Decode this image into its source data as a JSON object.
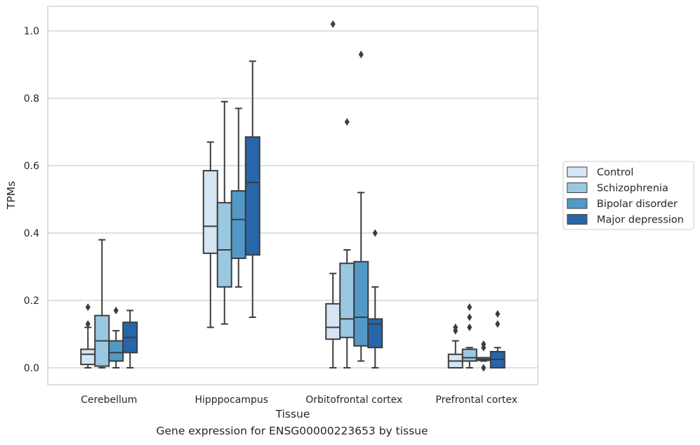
{
  "chart_data": {
    "type": "box",
    "xlabel": "Tissue",
    "ylabel": "TPMs",
    "ylim": [
      -0.05,
      1.07
    ],
    "yticks": [
      0.0,
      0.2,
      0.4,
      0.6,
      0.8,
      1.0
    ],
    "ytick_labels": [
      "0.0",
      "0.2",
      "0.4",
      "0.6",
      "0.8",
      "1.0"
    ],
    "grid": "horizontal",
    "legend_position": "right",
    "categories": [
      "Cerebellum",
      "Hipppocampus",
      "Orbitofrontal cortex",
      "Prefrontal cortex"
    ],
    "series": [
      {
        "name": "Control",
        "color": "#d6e5f4",
        "boxes": [
          {
            "whislo": 0.0,
            "q1": 0.01,
            "med": 0.04,
            "q3": 0.055,
            "whishi": 0.12,
            "fliers": [
              0.18,
              0.13
            ]
          },
          {
            "whislo": 0.12,
            "q1": 0.34,
            "med": 0.42,
            "q3": 0.585,
            "whishi": 0.67,
            "fliers": []
          },
          {
            "whislo": 0.0,
            "q1": 0.085,
            "med": 0.12,
            "q3": 0.19,
            "whishi": 0.28,
            "fliers": [
              1.02
            ]
          },
          {
            "whislo": 0.0,
            "q1": 0.0,
            "med": 0.02,
            "q3": 0.04,
            "whishi": 0.08,
            "fliers": [
              0.12,
              0.11
            ]
          }
        ]
      },
      {
        "name": "Schizophrenia",
        "color": "#9ac8e0",
        "boxes": [
          {
            "whislo": 0.0,
            "q1": 0.005,
            "med": 0.08,
            "q3": 0.155,
            "whishi": 0.38,
            "fliers": []
          },
          {
            "whislo": 0.13,
            "q1": 0.24,
            "med": 0.35,
            "q3": 0.49,
            "whishi": 0.79,
            "fliers": []
          },
          {
            "whislo": 0.0,
            "q1": 0.09,
            "med": 0.145,
            "q3": 0.31,
            "whishi": 0.35,
            "fliers": [
              0.73
            ]
          },
          {
            "whislo": 0.0,
            "q1": 0.02,
            "med": 0.03,
            "q3": 0.055,
            "whishi": 0.06,
            "fliers": [
              0.18,
              0.15,
              0.12
            ]
          }
        ]
      },
      {
        "name": "Bipolar disorder",
        "color": "#5299c8",
        "boxes": [
          {
            "whislo": 0.0,
            "q1": 0.02,
            "med": 0.045,
            "q3": 0.08,
            "whishi": 0.11,
            "fliers": [
              0.17
            ]
          },
          {
            "whislo": 0.24,
            "q1": 0.325,
            "med": 0.44,
            "q3": 0.525,
            "whishi": 0.77,
            "fliers": []
          },
          {
            "whislo": 0.02,
            "q1": 0.065,
            "med": 0.15,
            "q3": 0.315,
            "whishi": 0.52,
            "fliers": [
              0.93
            ]
          },
          {
            "whislo": 0.02,
            "q1": 0.022,
            "med": 0.025,
            "q3": 0.03,
            "whishi": 0.03,
            "fliers": [
              0.07,
              0.06,
              0.0
            ]
          }
        ]
      },
      {
        "name": "Major depression",
        "color": "#2666a9",
        "boxes": [
          {
            "whislo": 0.0,
            "q1": 0.045,
            "med": 0.09,
            "q3": 0.135,
            "whishi": 0.17,
            "fliers": []
          },
          {
            "whislo": 0.15,
            "q1": 0.335,
            "med": 0.55,
            "q3": 0.685,
            "whishi": 0.91,
            "fliers": []
          },
          {
            "whislo": 0.0,
            "q1": 0.06,
            "med": 0.13,
            "q3": 0.145,
            "whishi": 0.24,
            "fliers": [
              0.4
            ]
          },
          {
            "whislo": 0.0,
            "q1": 0.0,
            "med": 0.025,
            "q3": 0.048,
            "whishi": 0.06,
            "fliers": [
              0.16,
              0.13
            ]
          }
        ]
      }
    ]
  },
  "caption": "Gene expression for ENSG00000223653 by tissue"
}
